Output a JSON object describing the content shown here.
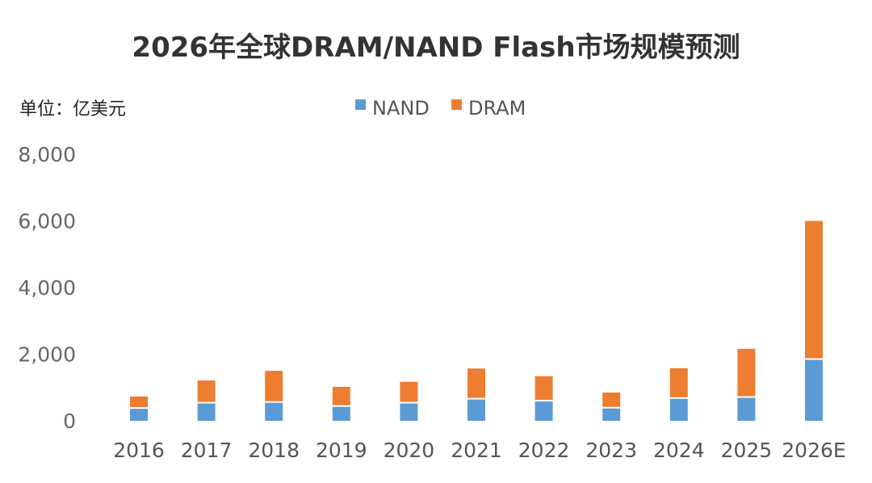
{
  "chart_data": {
    "type": "bar",
    "stacked": true,
    "title": "2026年全球DRAM/NAND Flash市场规模预测",
    "unit_label": "单位：亿美元",
    "categories": [
      "2016",
      "2017",
      "2018",
      "2019",
      "2020",
      "2021",
      "2022",
      "2023",
      "2024",
      "2025",
      "2026E"
    ],
    "series": [
      {
        "name": "NAND",
        "color": "#5B9BD5",
        "values": [
          360,
          520,
          540,
          420,
          520,
          640,
          580,
          370,
          660,
          690,
          1830
        ]
      },
      {
        "name": "DRAM",
        "color": "#ED7D31",
        "values": [
          370,
          690,
          960,
          600,
          650,
          930,
          760,
          480,
          920,
          1470,
          4170
        ]
      }
    ],
    "yticks": [
      "0",
      "2,000",
      "4,000",
      "6,000",
      "8,000"
    ],
    "ylim": [
      0,
      8000
    ],
    "legend_position": "top-center",
    "grid": false
  }
}
